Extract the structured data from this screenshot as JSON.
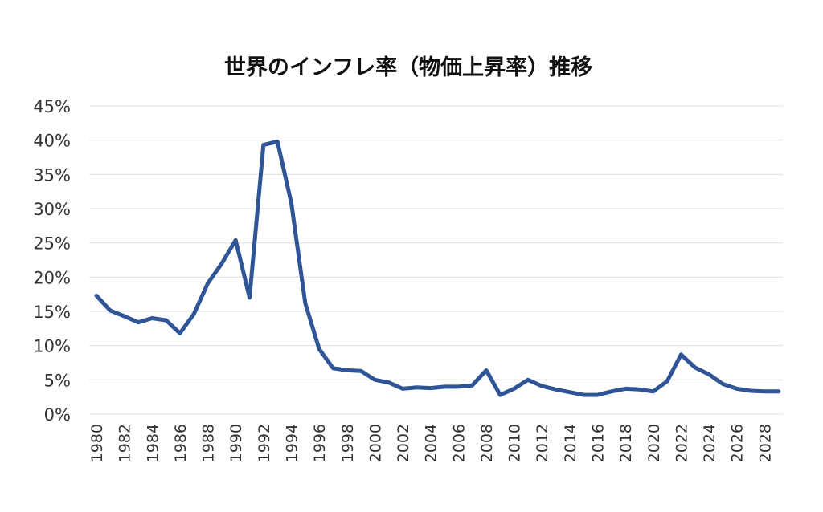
{
  "chart_data": {
    "type": "line",
    "title": "世界のインフレ率（物価上昇率）推移",
    "xlabel": "",
    "ylabel": "",
    "ylim": [
      0,
      45
    ],
    "y_ticks": [
      "0%",
      "5%",
      "10%",
      "15%",
      "20%",
      "25%",
      "30%",
      "35%",
      "40%",
      "45%"
    ],
    "x_tick_labels": [
      "1980",
      "1982",
      "1984",
      "1986",
      "1988",
      "1990",
      "1992",
      "1994",
      "1996",
      "1998",
      "2000",
      "2002",
      "2004",
      "2006",
      "2008",
      "2010",
      "2012",
      "2014",
      "2016",
      "2018",
      "2020",
      "2022",
      "2024",
      "2026",
      "2028"
    ],
    "grid": true,
    "legend": "none",
    "line_color": "#2f5597",
    "series": [
      {
        "name": "インフレ率",
        "x": [
          1980,
          1981,
          1982,
          1983,
          1984,
          1985,
          1986,
          1987,
          1988,
          1989,
          1990,
          1991,
          1992,
          1993,
          1994,
          1995,
          1996,
          1997,
          1998,
          1999,
          2000,
          2001,
          2002,
          2003,
          2004,
          2005,
          2006,
          2007,
          2008,
          2009,
          2010,
          2011,
          2012,
          2013,
          2014,
          2015,
          2016,
          2017,
          2018,
          2019,
          2020,
          2021,
          2022,
          2023,
          2024,
          2025,
          2026,
          2027,
          2028,
          2029
        ],
        "values": [
          17.3,
          15.1,
          14.3,
          13.4,
          14.0,
          13.7,
          11.8,
          14.6,
          19.1,
          22.0,
          25.4,
          17.0,
          39.3,
          39.8,
          30.8,
          16.2,
          9.5,
          6.7,
          6.4,
          6.3,
          5.0,
          4.6,
          3.7,
          3.9,
          3.8,
          4.0,
          4.0,
          4.2,
          6.4,
          2.8,
          3.7,
          5.0,
          4.1,
          3.6,
          3.2,
          2.8,
          2.8,
          3.3,
          3.7,
          3.6,
          3.3,
          4.8,
          8.7,
          6.8,
          5.8,
          4.4,
          3.7,
          3.4,
          3.3,
          3.3
        ]
      }
    ]
  }
}
